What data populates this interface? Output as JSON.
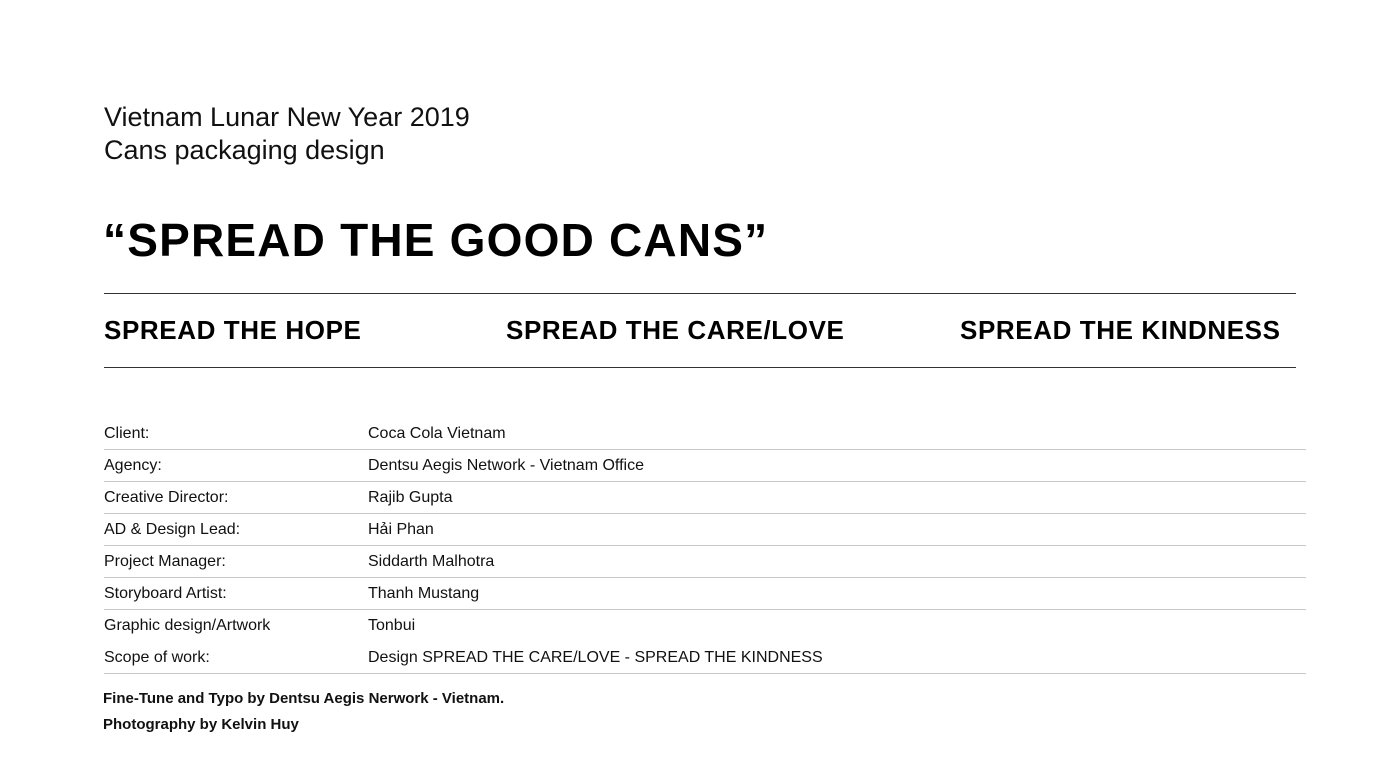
{
  "intro": {
    "line1": "Vietnam Lunar New Year 2019",
    "line2": "Cans packaging design"
  },
  "headline": "“SPREAD THE GOOD CANS”",
  "pillars": [
    "SPREAD THE HOPE",
    "SPREAD THE CARE/LOVE",
    "SPREAD THE KINDNESS"
  ],
  "credits": [
    {
      "label": "Client:",
      "value": "Coca Cola Vietnam"
    },
    {
      "label": "Agency:",
      "value": "Dentsu Aegis Network - Vietnam Office"
    },
    {
      "label": "Creative Director:",
      "value": "Rajib Gupta"
    },
    {
      "label": "AD & Design Lead:",
      "value": "Hải Phan"
    },
    {
      "label": "Project Manager:",
      "value": "Siddarth Malhotra"
    },
    {
      "label": "Storyboard Artist:",
      "value": "Thanh Mustang"
    },
    {
      "label": "Graphic design/Artwork",
      "value": "Tonbui"
    },
    {
      "label": "Scope of work:",
      "value": "Design SPREAD THE CARE/LOVE - SPREAD THE KINDNESS"
    }
  ],
  "footer": {
    "line1": "Fine-Tune and Typo by Dentsu Aegis Nerwork - Vietnam.",
    "line2": "Photography by Kelvin Huy"
  }
}
